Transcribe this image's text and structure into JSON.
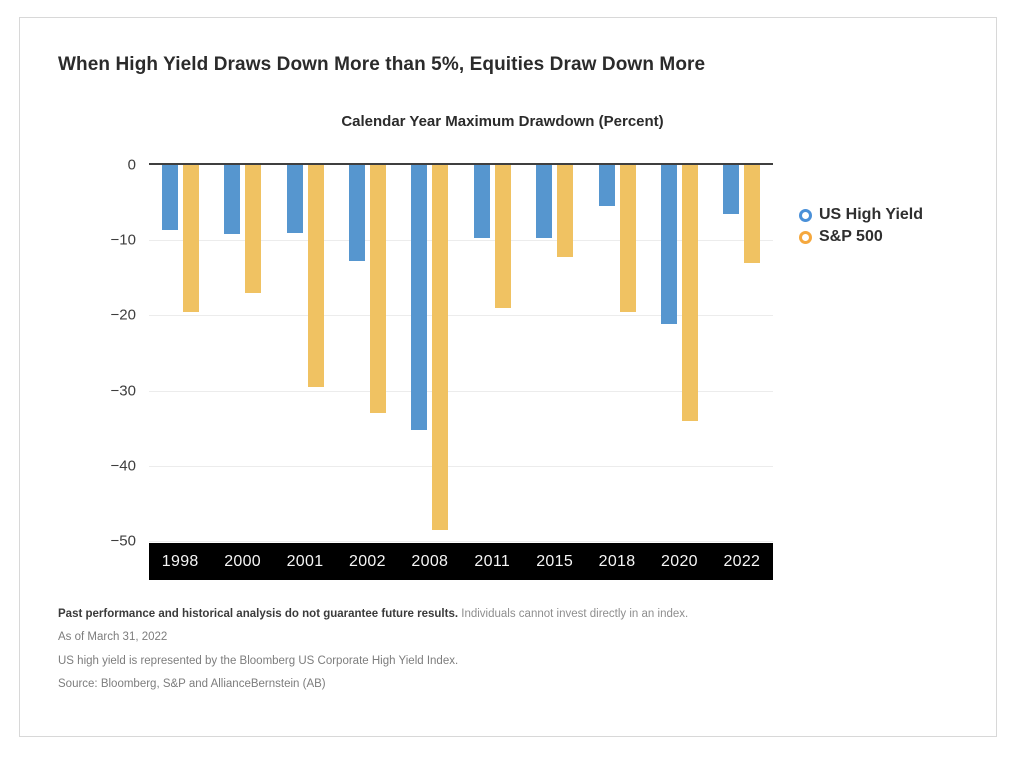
{
  "page": {
    "title": "When High Yield Draws Down More than 5%, Equities Draw Down More"
  },
  "chart_data": {
    "type": "bar",
    "title": "Calendar Year Maximum Drawdown (Percent)",
    "categories": [
      "1998",
      "2000",
      "2001",
      "2002",
      "2008",
      "2011",
      "2015",
      "2018",
      "2020",
      "2022"
    ],
    "series": [
      {
        "name": "US High Yield",
        "color": "#5696cf",
        "values": [
          -8.7,
          -9.2,
          -9.0,
          -12.8,
          -35.3,
          -9.7,
          -9.7,
          -5.5,
          -21.2,
          -6.5
        ]
      },
      {
        "name": "S&P 500",
        "color": "#f0c262",
        "values": [
          -19.5,
          -17.0,
          -29.5,
          -33.0,
          -48.5,
          -19.0,
          -12.2,
          -19.5,
          -34.0,
          -13.0
        ]
      }
    ],
    "ylabel": "",
    "xlabel": "",
    "ylim": [
      -50,
      0
    ],
    "yticks": [
      0,
      -10,
      -20,
      -30,
      -40,
      -50
    ],
    "grid": true,
    "legend_position": "right",
    "colors": {
      "zero_line": "#3f3f3f",
      "gridline": "#ececec",
      "x_band_background": "#000000",
      "x_band_text": "#f5f5f5"
    }
  },
  "legend": {
    "items": [
      {
        "label": "US High Yield",
        "ring_color": "#4a90d8"
      },
      {
        "label": "S&P 500",
        "ring_color": "#f5a83e"
      }
    ]
  },
  "footnotes": {
    "disclaimer_bold": "Past performance and historical analysis do not guarantee future results.",
    "disclaimer_rest": "Individuals cannot invest directly in an index.",
    "as_of": "As of March 31, 2022",
    "index_note": "US high yield is represented by the Bloomberg US Corporate High Yield Index.",
    "source": "Source: Bloomberg, S&P and AllianceBernstein (AB)"
  }
}
